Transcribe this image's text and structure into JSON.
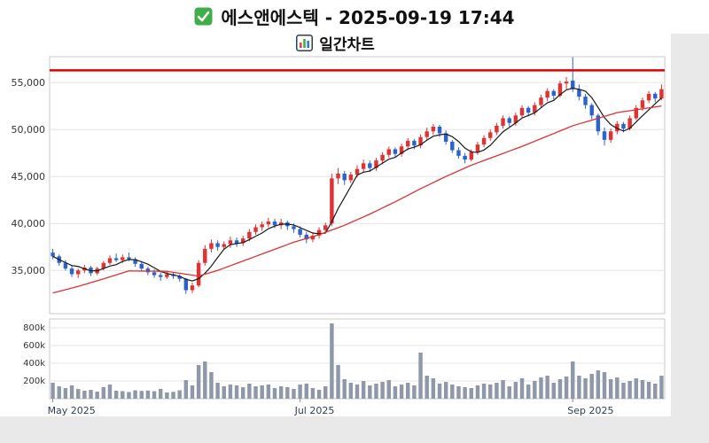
{
  "header": {
    "title": "에스앤에스텍 - 2025-09-19 17:44",
    "subtitle": "일간차트",
    "title_icon": "green-checkbox",
    "subtitle_icon": "bar-chart"
  },
  "chart_data": {
    "type": "candlestick",
    "title": "일간차트",
    "symbol": "에스앤에스텍",
    "as_of": "2025-09-19 17:44",
    "y_axis": {
      "ticks": [
        35000,
        40000,
        45000,
        50000,
        55000
      ]
    },
    "volume_axis": {
      "ticks": [
        200000,
        400000,
        600000,
        800000
      ],
      "labels": [
        "200k",
        "400k",
        "600k",
        "800k"
      ],
      "max": 900000
    },
    "x_ticks": [
      {
        "label": "May 2025",
        "index": 0
      },
      {
        "label": "Jul 2025",
        "index": 39
      },
      {
        "label": "Sep 2025",
        "index": 82
      }
    ],
    "price_range": [
      30400,
      57750
    ],
    "resistance_line": {
      "value": 56300,
      "color": "#e00000"
    },
    "colors": {
      "up": "#e03232",
      "down": "#2a63cf",
      "ma_short": "#1a1a1a",
      "ma_long": "#e03030",
      "volume": "#8f98a8",
      "grid": "#e4e4e4",
      "axis": "#c9c9c9",
      "label": "#333333",
      "date_label": "#2e3f54"
    },
    "ma_short": {
      "period": 5,
      "source": "close"
    },
    "ma_long": {
      "points": [
        [
          0,
          32600
        ],
        [
          4,
          33300
        ],
        [
          8,
          34100
        ],
        [
          12,
          34950
        ],
        [
          18,
          34900
        ],
        [
          23,
          34400
        ],
        [
          26,
          35000
        ],
        [
          30,
          36000
        ],
        [
          34,
          37000
        ],
        [
          38,
          38000
        ],
        [
          42,
          38800
        ],
        [
          46,
          39800
        ],
        [
          50,
          41000
        ],
        [
          54,
          42300
        ],
        [
          58,
          43700
        ],
        [
          62,
          45000
        ],
        [
          66,
          46200
        ],
        [
          70,
          47200
        ],
        [
          74,
          48200
        ],
        [
          78,
          49300
        ],
        [
          82,
          50400
        ],
        [
          86,
          51200
        ],
        [
          89,
          51800
        ],
        [
          92,
          52100
        ],
        [
          96,
          52500
        ]
      ]
    },
    "candles": [
      [
        "2025-05-02",
        36900,
        37300,
        36200,
        36500,
        180000
      ],
      [
        "2025-05-06",
        36500,
        36700,
        35500,
        35800,
        140000
      ],
      [
        "2025-05-07",
        35800,
        36100,
        35000,
        35200,
        120000
      ],
      [
        "2025-05-08",
        35200,
        35500,
        34300,
        34600,
        150000
      ],
      [
        "2025-05-09",
        34600,
        35200,
        34200,
        35000,
        110000
      ],
      [
        "2025-05-12",
        35000,
        35600,
        34700,
        35300,
        90000
      ],
      [
        "2025-05-13",
        35300,
        35500,
        34400,
        34700,
        100000
      ],
      [
        "2025-05-14",
        34700,
        35400,
        34500,
        35200,
        80000
      ],
      [
        "2025-05-15",
        35200,
        36000,
        35000,
        35800,
        130000
      ],
      [
        "2025-05-16",
        35800,
        36600,
        35600,
        36300,
        160000
      ],
      [
        "2025-05-19",
        36300,
        36800,
        35900,
        36100,
        90000
      ],
      [
        "2025-05-20",
        36100,
        36700,
        35800,
        36400,
        85000
      ],
      [
        "2025-05-21",
        36400,
        36900,
        36000,
        36200,
        75000
      ],
      [
        "2025-05-22",
        36200,
        36400,
        35400,
        35700,
        95000
      ],
      [
        "2025-05-23",
        35700,
        35900,
        34900,
        35200,
        88000
      ],
      [
        "2025-05-26",
        35200,
        35400,
        34500,
        34800,
        92000
      ],
      [
        "2025-05-27",
        34800,
        35100,
        34200,
        34500,
        85000
      ],
      [
        "2025-05-28",
        34500,
        34800,
        33900,
        34300,
        110000
      ],
      [
        "2025-05-29",
        34300,
        34900,
        34100,
        34600,
        70000
      ],
      [
        "2025-05-30",
        34600,
        34800,
        34100,
        34400,
        78000
      ],
      [
        "2025-06-02",
        34400,
        34600,
        33800,
        34100,
        95000
      ],
      [
        "2025-06-04",
        34100,
        34200,
        32500,
        32900,
        210000
      ],
      [
        "2025-06-05",
        32900,
        33700,
        32600,
        33400,
        150000
      ],
      [
        "2025-06-09",
        33400,
        36100,
        33200,
        35800,
        380000
      ],
      [
        "2025-06-10",
        35800,
        37700,
        35500,
        37300,
        420000
      ],
      [
        "2025-06-11",
        37300,
        38300,
        36900,
        37900,
        300000
      ],
      [
        "2025-06-12",
        37900,
        38200,
        37100,
        37500,
        180000
      ],
      [
        "2025-06-13",
        37500,
        38100,
        37200,
        37800,
        140000
      ],
      [
        "2025-06-16",
        37800,
        38600,
        37400,
        38200,
        160000
      ],
      [
        "2025-06-17",
        38200,
        38500,
        37500,
        37900,
        150000
      ],
      [
        "2025-06-18",
        37900,
        38700,
        37600,
        38400,
        130000
      ],
      [
        "2025-06-19",
        38400,
        39400,
        38100,
        39100,
        170000
      ],
      [
        "2025-06-20",
        39100,
        39900,
        38800,
        39600,
        140000
      ],
      [
        "2025-06-23",
        39600,
        40200,
        39200,
        39900,
        150000
      ],
      [
        "2025-06-24",
        39900,
        40600,
        39600,
        40200,
        160000
      ],
      [
        "2025-06-25",
        40200,
        40500,
        39500,
        39800,
        120000
      ],
      [
        "2025-06-26",
        39800,
        40500,
        39400,
        40100,
        140000
      ],
      [
        "2025-06-27",
        40100,
        40300,
        39300,
        39700,
        130000
      ],
      [
        "2025-06-30",
        39700,
        40000,
        39000,
        39400,
        110000
      ],
      [
        "2025-07-01",
        39400,
        39700,
        38500,
        38800,
        160000
      ],
      [
        "2025-07-02",
        38800,
        39100,
        37900,
        38300,
        170000
      ],
      [
        "2025-07-03",
        38300,
        39000,
        38000,
        38700,
        120000
      ],
      [
        "2025-07-04",
        38700,
        39600,
        38400,
        39300,
        100000
      ],
      [
        "2025-07-07",
        39300,
        40100,
        39000,
        39800,
        140000
      ],
      [
        "2025-07-08",
        40000,
        45300,
        39700,
        44800,
        850000
      ],
      [
        "2025-07-09",
        44800,
        45900,
        44200,
        45300,
        380000
      ],
      [
        "2025-07-10",
        45300,
        45600,
        44100,
        44600,
        220000
      ],
      [
        "2025-07-11",
        44600,
        45500,
        44300,
        45200,
        180000
      ],
      [
        "2025-07-14",
        45200,
        46200,
        44900,
        45800,
        160000
      ],
      [
        "2025-07-15",
        45800,
        46800,
        45500,
        46400,
        200000
      ],
      [
        "2025-07-16",
        46400,
        46700,
        45500,
        45900,
        150000
      ],
      [
        "2025-07-17",
        45900,
        47000,
        45600,
        46700,
        170000
      ],
      [
        "2025-07-18",
        46700,
        47600,
        46300,
        47300,
        190000
      ],
      [
        "2025-07-21",
        47300,
        48200,
        47000,
        47900,
        210000
      ],
      [
        "2025-07-22",
        47900,
        48100,
        47000,
        47400,
        140000
      ],
      [
        "2025-07-23",
        47400,
        48500,
        47100,
        48200,
        160000
      ],
      [
        "2025-07-24",
        48200,
        49100,
        47800,
        48800,
        180000
      ],
      [
        "2025-07-25",
        48800,
        49000,
        47900,
        48300,
        150000
      ],
      [
        "2025-07-28",
        48300,
        49500,
        48000,
        49200,
        520000
      ],
      [
        "2025-07-29",
        49200,
        50200,
        48900,
        49800,
        260000
      ],
      [
        "2025-07-30",
        49800,
        50600,
        49400,
        50300,
        230000
      ],
      [
        "2025-07-31",
        50300,
        50500,
        49200,
        49600,
        170000
      ],
      [
        "2025-08-01",
        49600,
        49900,
        48400,
        48700,
        190000
      ],
      [
        "2025-08-04",
        48700,
        48900,
        47500,
        47800,
        160000
      ],
      [
        "2025-08-05",
        47800,
        48100,
        46900,
        47200,
        140000
      ],
      [
        "2025-08-06",
        47200,
        47500,
        46400,
        46800,
        130000
      ],
      [
        "2025-08-07",
        46800,
        47900,
        46600,
        47600,
        120000
      ],
      [
        "2025-08-08",
        47600,
        48700,
        47300,
        48400,
        150000
      ],
      [
        "2025-08-11",
        48400,
        49400,
        48100,
        49100,
        170000
      ],
      [
        "2025-08-12",
        49100,
        50000,
        48800,
        49700,
        160000
      ],
      [
        "2025-08-13",
        49700,
        50700,
        49400,
        50400,
        180000
      ],
      [
        "2025-08-14",
        50400,
        51500,
        50100,
        51200,
        210000
      ],
      [
        "2025-08-18",
        51200,
        51400,
        50300,
        50700,
        140000
      ],
      [
        "2025-08-19",
        50700,
        51800,
        50400,
        51500,
        190000
      ],
      [
        "2025-08-20",
        51500,
        52600,
        51200,
        52300,
        230000
      ],
      [
        "2025-08-21",
        52300,
        52500,
        51400,
        51800,
        160000
      ],
      [
        "2025-08-22",
        51800,
        52900,
        51500,
        52600,
        200000
      ],
      [
        "2025-08-25",
        52600,
        53700,
        52300,
        53400,
        240000
      ],
      [
        "2025-08-26",
        53400,
        54400,
        53000,
        54100,
        260000
      ],
      [
        "2025-08-27",
        54100,
        54300,
        53200,
        53600,
        180000
      ],
      [
        "2025-08-28",
        53600,
        55200,
        53400,
        54900,
        220000
      ],
      [
        "2025-08-29",
        54900,
        55600,
        54300,
        55100,
        250000
      ],
      [
        "2025-09-01",
        55200,
        57700,
        54000,
        54300,
        420000
      ],
      [
        "2025-09-02",
        54300,
        54800,
        53100,
        53500,
        260000
      ],
      [
        "2025-09-03",
        53500,
        53800,
        52200,
        52600,
        230000
      ],
      [
        "2025-09-04",
        52600,
        52800,
        51100,
        51500,
        280000
      ],
      [
        "2025-09-05",
        51500,
        51700,
        49400,
        49800,
        320000
      ],
      [
        "2025-09-08",
        49800,
        50200,
        48300,
        48900,
        300000
      ],
      [
        "2025-09-09",
        48900,
        50100,
        48600,
        49800,
        220000
      ],
      [
        "2025-09-10",
        49800,
        50900,
        49500,
        50600,
        240000
      ],
      [
        "2025-09-11",
        50600,
        50800,
        49700,
        50100,
        180000
      ],
      [
        "2025-09-12",
        50100,
        51500,
        49900,
        51200,
        200000
      ],
      [
        "2025-09-15",
        51200,
        52600,
        51000,
        52300,
        230000
      ],
      [
        "2025-09-16",
        52300,
        53400,
        52000,
        53100,
        210000
      ],
      [
        "2025-09-17",
        53100,
        54100,
        52800,
        53800,
        190000
      ],
      [
        "2025-09-18",
        53800,
        54000,
        52900,
        53300,
        170000
      ],
      [
        "2025-09-19",
        53300,
        54800,
        53100,
        54300,
        260000
      ]
    ]
  }
}
